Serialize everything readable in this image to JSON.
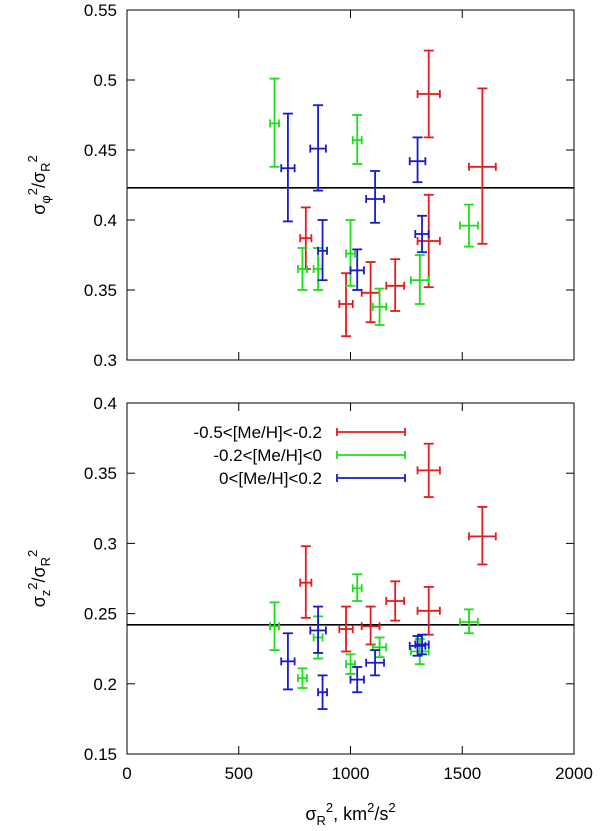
{
  "chart_data": [
    {
      "type": "scatter",
      "name": "top",
      "xlim": [
        0,
        2000
      ],
      "ylim": [
        0.3,
        0.55
      ],
      "yticks": [
        0.3,
        0.35,
        0.4,
        0.45,
        0.5,
        0.55
      ],
      "ytick_labels": [
        "0.3",
        "0.35",
        "0.4",
        "0.45",
        "0.5",
        "0.55"
      ],
      "ylabel": {
        "base": "σ",
        "sub": "φ",
        "sup": "2",
        "mid": "/σ",
        "sub2": "R",
        "sup2": "2"
      },
      "reference_line": 0.423,
      "series": [
        {
          "name": "-0.5<[Me/H]<-0.2",
          "color": "#e41a1c",
          "points": [
            {
              "x": 800,
              "y": 0.387,
              "xerr": 25,
              "ylo": 0.365,
              "yhi": 0.409
            },
            {
              "x": 980,
              "y": 0.34,
              "xerr": 30,
              "ylo": 0.317,
              "yhi": 0.362
            },
            {
              "x": 1090,
              "y": 0.348,
              "xerr": 40,
              "ylo": 0.327,
              "yhi": 0.37
            },
            {
              "x": 1200,
              "y": 0.353,
              "xerr": 40,
              "ylo": 0.335,
              "yhi": 0.372
            },
            {
              "x": 1350,
              "y": 0.49,
              "xerr": 50,
              "ylo": 0.459,
              "yhi": 0.521
            },
            {
              "x": 1350,
              "y": 0.385,
              "xerr": 50,
              "ylo": 0.352,
              "yhi": 0.418
            },
            {
              "x": 1590,
              "y": 0.438,
              "xerr": 60,
              "ylo": 0.383,
              "yhi": 0.494
            }
          ]
        },
        {
          "name": "-0.2<[Me/H]<0",
          "color": "#1adf1a",
          "points": [
            {
              "x": 660,
              "y": 0.469,
              "xerr": 20,
              "ylo": 0.438,
              "yhi": 0.501
            },
            {
              "x": 785,
              "y": 0.365,
              "xerr": 20,
              "ylo": 0.35,
              "yhi": 0.38
            },
            {
              "x": 855,
              "y": 0.365,
              "xerr": 20,
              "ylo": 0.35,
              "yhi": 0.38
            },
            {
              "x": 1000,
              "y": 0.376,
              "xerr": 20,
              "ylo": 0.353,
              "yhi": 0.4
            },
            {
              "x": 1030,
              "y": 0.457,
              "xerr": 20,
              "ylo": 0.44,
              "yhi": 0.475
            },
            {
              "x": 1130,
              "y": 0.338,
              "xerr": 30,
              "ylo": 0.325,
              "yhi": 0.351
            },
            {
              "x": 1310,
              "y": 0.357,
              "xerr": 40,
              "ylo": 0.34,
              "yhi": 0.375
            },
            {
              "x": 1530,
              "y": 0.396,
              "xerr": 40,
              "ylo": 0.381,
              "yhi": 0.411
            }
          ]
        },
        {
          "name": "0<[Me/H]<0.2",
          "color": "#1a1acd",
          "points": [
            {
              "x": 720,
              "y": 0.437,
              "xerr": 30,
              "ylo": 0.399,
              "yhi": 0.476
            },
            {
              "x": 855,
              "y": 0.451,
              "xerr": 35,
              "ylo": 0.421,
              "yhi": 0.482
            },
            {
              "x": 875,
              "y": 0.378,
              "xerr": 20,
              "ylo": 0.357,
              "yhi": 0.4
            },
            {
              "x": 1030,
              "y": 0.364,
              "xerr": 30,
              "ylo": 0.35,
              "yhi": 0.379
            },
            {
              "x": 1110,
              "y": 0.415,
              "xerr": 40,
              "ylo": 0.398,
              "yhi": 0.435
            },
            {
              "x": 1300,
              "y": 0.442,
              "xerr": 35,
              "ylo": 0.427,
              "yhi": 0.459
            },
            {
              "x": 1320,
              "y": 0.39,
              "xerr": 30,
              "ylo": 0.377,
              "yhi": 0.403
            }
          ]
        }
      ]
    },
    {
      "type": "scatter",
      "name": "bottom",
      "xlim": [
        0,
        2000
      ],
      "ylim": [
        0.15,
        0.4
      ],
      "xticks": [
        0,
        500,
        1000,
        1500,
        2000
      ],
      "xtick_labels": [
        "0",
        "500",
        "1000",
        "1500",
        "2000"
      ],
      "yticks": [
        0.15,
        0.2,
        0.25,
        0.3,
        0.35,
        0.4
      ],
      "ytick_labels": [
        "0.15",
        "0.2",
        "0.25",
        "0.3",
        "0.35",
        "0.4"
      ],
      "xlabel": {
        "base": "σ",
        "sub": "R",
        "sup": "2",
        "rest": ", km",
        "sup2": "2",
        "rest2": "/s",
        "sup3": "2"
      },
      "ylabel": {
        "base": "σ",
        "sub": "z",
        "sup": "2",
        "mid": "/σ",
        "sub2": "R",
        "sup2": "2"
      },
      "reference_line": 0.242,
      "legend": {
        "position": "top-left",
        "entries": [
          "-0.5<[Me/H]<-0.2",
          "-0.2<[Me/H]<0",
          "0<[Me/H]<0.2"
        ]
      },
      "series": [
        {
          "name": "-0.5<[Me/H]<-0.2",
          "color": "#e41a1c",
          "points": [
            {
              "x": 800,
              "y": 0.272,
              "xerr": 25,
              "ylo": 0.247,
              "yhi": 0.298
            },
            {
              "x": 980,
              "y": 0.239,
              "xerr": 30,
              "ylo": 0.223,
              "yhi": 0.255
            },
            {
              "x": 1090,
              "y": 0.241,
              "xerr": 40,
              "ylo": 0.228,
              "yhi": 0.255
            },
            {
              "x": 1200,
              "y": 0.259,
              "xerr": 40,
              "ylo": 0.245,
              "yhi": 0.273
            },
            {
              "x": 1350,
              "y": 0.352,
              "xerr": 50,
              "ylo": 0.333,
              "yhi": 0.371
            },
            {
              "x": 1350,
              "y": 0.252,
              "xerr": 50,
              "ylo": 0.235,
              "yhi": 0.269
            },
            {
              "x": 1590,
              "y": 0.305,
              "xerr": 60,
              "ylo": 0.285,
              "yhi": 0.326
            }
          ]
        },
        {
          "name": "-0.2<[Me/H]<0",
          "color": "#1adf1a",
          "points": [
            {
              "x": 660,
              "y": 0.241,
              "xerr": 20,
              "ylo": 0.224,
              "yhi": 0.258
            },
            {
              "x": 785,
              "y": 0.204,
              "xerr": 20,
              "ylo": 0.197,
              "yhi": 0.211
            },
            {
              "x": 855,
              "y": 0.233,
              "xerr": 20,
              "ylo": 0.218,
              "yhi": 0.248
            },
            {
              "x": 1000,
              "y": 0.214,
              "xerr": 20,
              "ylo": 0.207,
              "yhi": 0.221
            },
            {
              "x": 1030,
              "y": 0.268,
              "xerr": 20,
              "ylo": 0.259,
              "yhi": 0.278
            },
            {
              "x": 1130,
              "y": 0.226,
              "xerr": 30,
              "ylo": 0.219,
              "yhi": 0.233
            },
            {
              "x": 1310,
              "y": 0.223,
              "xerr": 40,
              "ylo": 0.214,
              "yhi": 0.232
            },
            {
              "x": 1530,
              "y": 0.244,
              "xerr": 40,
              "ylo": 0.236,
              "yhi": 0.253
            }
          ]
        },
        {
          "name": "0<[Me/H]<0.2",
          "color": "#1a1acd",
          "points": [
            {
              "x": 720,
              "y": 0.216,
              "xerr": 30,
              "ylo": 0.196,
              "yhi": 0.236
            },
            {
              "x": 855,
              "y": 0.238,
              "xerr": 35,
              "ylo": 0.222,
              "yhi": 0.255
            },
            {
              "x": 875,
              "y": 0.194,
              "xerr": 20,
              "ylo": 0.182,
              "yhi": 0.206
            },
            {
              "x": 1030,
              "y": 0.203,
              "xerr": 30,
              "ylo": 0.194,
              "yhi": 0.212
            },
            {
              "x": 1110,
              "y": 0.215,
              "xerr": 40,
              "ylo": 0.206,
              "yhi": 0.224
            },
            {
              "x": 1300,
              "y": 0.227,
              "xerr": 35,
              "ylo": 0.22,
              "yhi": 0.234
            },
            {
              "x": 1320,
              "y": 0.228,
              "xerr": 30,
              "ylo": 0.221,
              "yhi": 0.235
            }
          ]
        }
      ]
    }
  ]
}
